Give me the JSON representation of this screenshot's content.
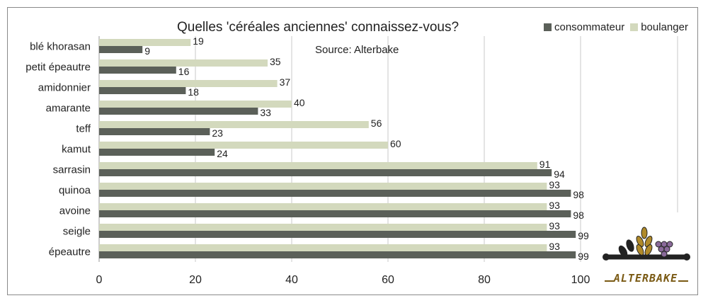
{
  "chart_data": {
    "type": "bar",
    "orientation": "horizontal",
    "title": "Quelles 'céréales anciennes' connaissez-vous?",
    "annotation": "Source: Alterbake",
    "categories": [
      "blé khorasan",
      "petit épeautre",
      "amidonnier",
      "amarante",
      "teff",
      "kamut",
      "sarrasin",
      "quinoa",
      "avoine",
      "seigle",
      "épeautre"
    ],
    "series": [
      {
        "name": "consommateur",
        "color": "#5b6059",
        "values": [
          9,
          16,
          18,
          33,
          23,
          24,
          94,
          98,
          98,
          99,
          99
        ]
      },
      {
        "name": "boulanger",
        "color": "#d3d9bd",
        "values": [
          19,
          35,
          37,
          40,
          56,
          60,
          91,
          93,
          93,
          93,
          93
        ]
      }
    ],
    "xlim": [
      0,
      100
    ],
    "xticks": [
      "0",
      "20",
      "40",
      "60",
      "80",
      "100"
    ],
    "grid": true,
    "legend_position": "top-right"
  },
  "logo": {
    "text": "ALTERBAKE",
    "icon": "wheat-grapes-rolling-pin-icon",
    "color": "#7a5a14"
  }
}
